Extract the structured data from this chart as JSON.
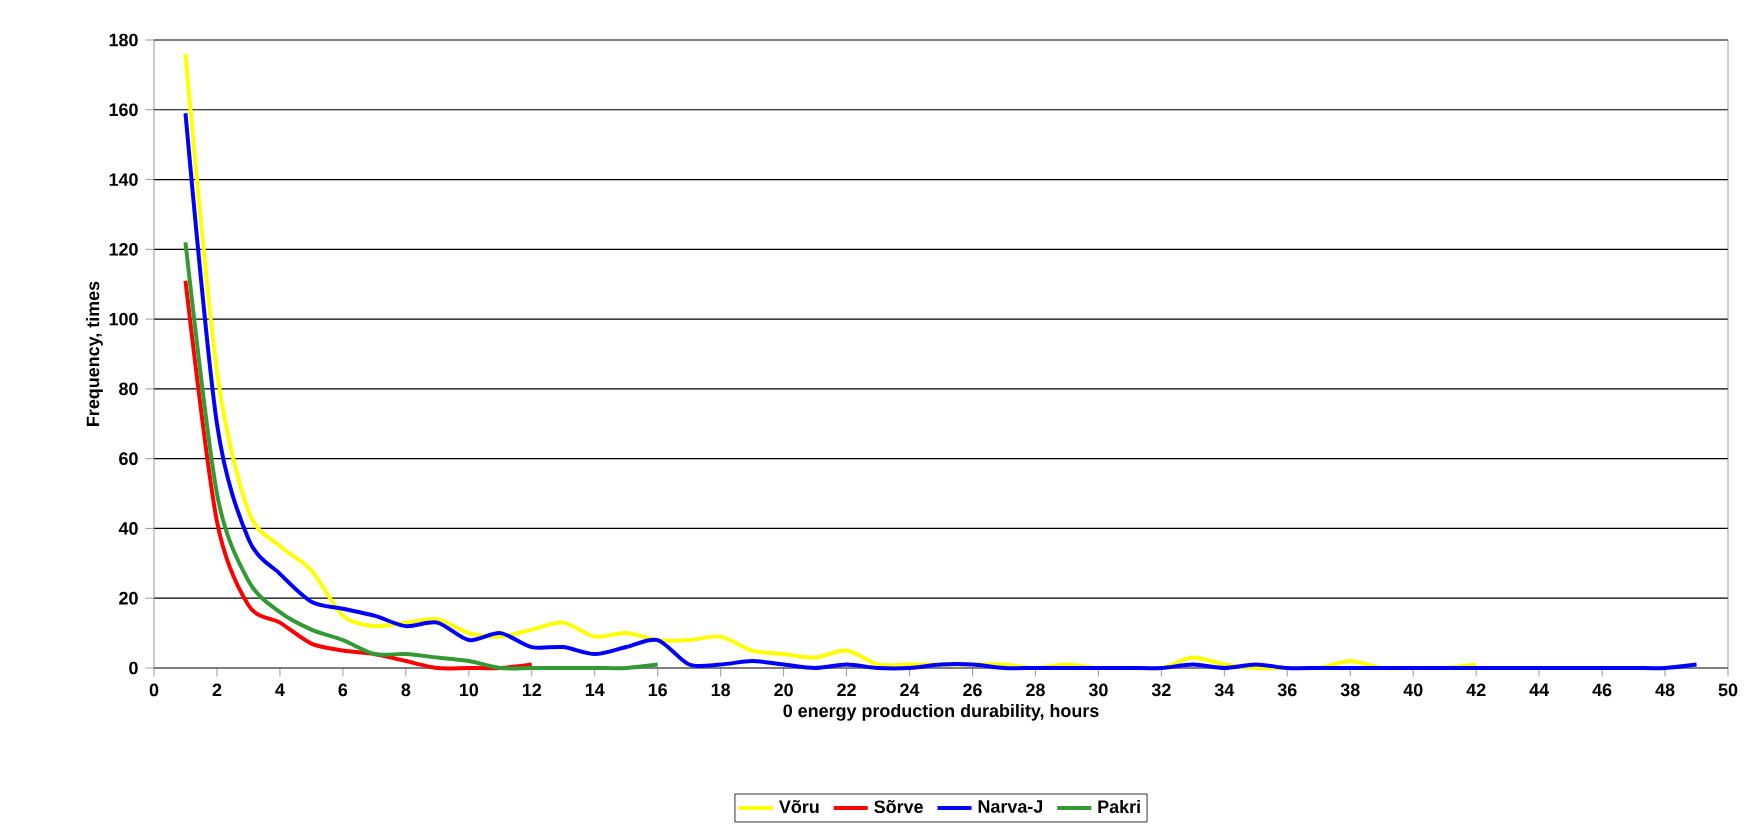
{
  "chart_data": {
    "type": "line",
    "xlabel": "0 energy production durability, hours",
    "ylabel": "Frequency, times",
    "xlim": [
      0,
      50
    ],
    "xticks": [
      0,
      2,
      4,
      6,
      8,
      10,
      12,
      14,
      16,
      18,
      20,
      22,
      24,
      26,
      28,
      30,
      32,
      34,
      36,
      38,
      40,
      42,
      44,
      46,
      48,
      50
    ],
    "ylim": [
      0,
      180
    ],
    "yticks": [
      0,
      20,
      40,
      60,
      80,
      100,
      120,
      140,
      160,
      180
    ],
    "grid": "y",
    "legend": "bottom",
    "marker": "none",
    "line_style": "solid",
    "series": [
      {
        "name": "Võru",
        "color": "#ffff00",
        "x": [
          1,
          2,
          3,
          4,
          5,
          6,
          7,
          8,
          9,
          10,
          11,
          12,
          13,
          14,
          15,
          16,
          17,
          18,
          19,
          20,
          21,
          22,
          23,
          24,
          25,
          26,
          27,
          28,
          29,
          30,
          31,
          32,
          33,
          34,
          35,
          36,
          37,
          38,
          39,
          40,
          41,
          42
        ],
        "values": [
          176,
          85,
          45,
          35,
          28,
          15,
          12,
          13,
          14,
          10,
          9,
          11,
          13,
          9,
          10,
          8,
          8,
          9,
          5,
          4,
          3,
          5,
          1,
          1,
          1,
          1,
          1,
          0,
          1,
          0,
          0,
          0,
          3,
          1,
          0,
          0,
          0,
          2,
          0,
          0,
          0,
          1
        ]
      },
      {
        "name": "Sõrve",
        "color": "#ff0000",
        "x": [
          1,
          2,
          3,
          4,
          5,
          6,
          7,
          8,
          9,
          10,
          11,
          12
        ],
        "values": [
          111,
          42,
          18,
          13,
          7,
          5,
          4,
          2,
          0,
          0,
          0,
          1
        ]
      },
      {
        "name": "Narva-J",
        "color": "#0000ff",
        "x": [
          1,
          2,
          3,
          4,
          5,
          6,
          7,
          8,
          9,
          10,
          11,
          12,
          13,
          14,
          15,
          16,
          17,
          18,
          19,
          20,
          21,
          22,
          23,
          24,
          25,
          26,
          27,
          28,
          29,
          30,
          31,
          32,
          33,
          34,
          35,
          36,
          37,
          38,
          39,
          40,
          41,
          42,
          43,
          44,
          45,
          46,
          47,
          48,
          49
        ],
        "values": [
          159,
          70,
          37,
          27,
          19,
          17,
          15,
          12,
          13,
          8,
          10,
          6,
          6,
          4,
          6,
          8,
          1,
          1,
          2,
          1,
          0,
          1,
          0,
          0,
          1,
          1,
          0,
          0,
          0,
          0,
          0,
          0,
          1,
          0,
          1,
          0,
          0,
          0,
          0,
          0,
          0,
          0,
          0,
          0,
          0,
          0,
          0,
          0,
          1
        ]
      },
      {
        "name": "Pakri",
        "color": "#339933",
        "x": [
          1,
          2,
          3,
          4,
          5,
          6,
          7,
          8,
          9,
          10,
          11,
          12,
          13,
          14,
          15,
          16
        ],
        "values": [
          122,
          50,
          25,
          16,
          11,
          8,
          4,
          4,
          3,
          2,
          0,
          0,
          0,
          0,
          0,
          1
        ]
      }
    ]
  }
}
